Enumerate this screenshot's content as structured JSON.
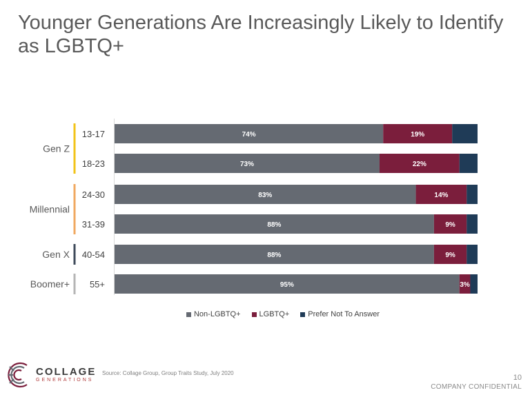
{
  "slide": {
    "title": "Younger Generations Are Increasingly Likely to Identify as LGBTQ+",
    "source": "Source: Collage Group, Group Traits Study, July 2020",
    "page_number": "10",
    "confidential": "COMPANY CONFIDENTIAL",
    "logo": {
      "name": "COLLAGE",
      "sub": "GENERATIONS"
    }
  },
  "colors": {
    "non_lgbtq": "#656a72",
    "lgbtq": "#7b1e3c",
    "prefer_not": "#1f3b57",
    "genz_bracket": "#f2c318",
    "millennial_bracket": "#f0a860",
    "genx_bracket": "#3e4a5a",
    "boomer_bracket": "#b5b5b5"
  },
  "chart_data": {
    "type": "bar",
    "orientation": "horizontal",
    "stacked": true,
    "percent_stacked": true,
    "title": "",
    "xlabel": "",
    "ylabel": "",
    "xlim": [
      0,
      100
    ],
    "groups": [
      {
        "name": "Gen Z",
        "categories": [
          "13-17",
          "18-23"
        ]
      },
      {
        "name": "Millennial",
        "categories": [
          "24-30",
          "31-39"
        ]
      },
      {
        "name": "Gen X",
        "categories": [
          "40-54"
        ]
      },
      {
        "name": "Boomer+",
        "categories": [
          "55+"
        ]
      }
    ],
    "categories": [
      "13-17",
      "18-23",
      "24-30",
      "31-39",
      "40-54",
      "55+"
    ],
    "series": [
      {
        "name": "Non-LGBTQ+",
        "values": [
          74,
          73,
          83,
          88,
          88,
          95
        ],
        "labels": [
          "74%",
          "73%",
          "83%",
          "88%",
          "88%",
          "95%"
        ]
      },
      {
        "name": "LGBTQ+",
        "values": [
          19,
          22,
          14,
          9,
          9,
          3
        ],
        "labels": [
          "19%",
          "22%",
          "14%",
          "9%",
          "9%",
          "3%"
        ]
      },
      {
        "name": "Prefer Not To Answer",
        "values": [
          7,
          5,
          3,
          3,
          3,
          2
        ]
      }
    ],
    "legend_position": "bottom",
    "grid": false
  }
}
